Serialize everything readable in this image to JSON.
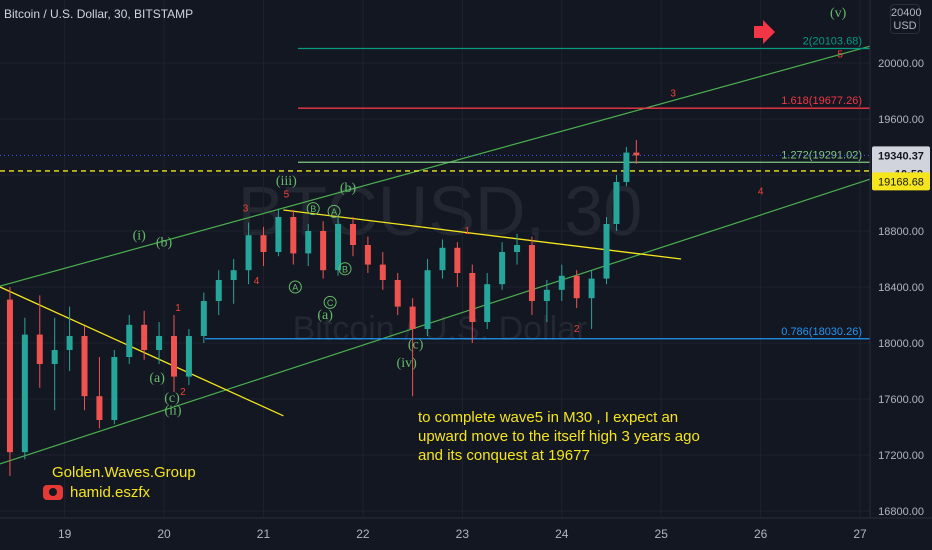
{
  "header": {
    "title": "Bitcoin / U.S. Dollar, 30, BITSTAMP"
  },
  "currency_badge": {
    "line1": "20400",
    "line2": "USD"
  },
  "watermark": {
    "symbol": "BTCUSD, 30",
    "name": "Bitcoin / U.S. Dollar"
  },
  "brand": {
    "group": "Golden.Waves.Group",
    "user": "hamid.eszfx"
  },
  "note": {
    "lines": [
      "to complete wave5 in M30 , I expect an",
      "upward move to the itself high 3 years ago",
      "and its conquest at  19677"
    ]
  },
  "colors": {
    "up": "#26a69a",
    "down": "#ef5350",
    "channel": "#4caf50",
    "trend": "#f5e51c",
    "fib_top": "#089981",
    "fib_1618": "#f23645",
    "fib_1272": "#81c784",
    "fib_0786": "#2196f3",
    "wave_green": "#66bb6a",
    "wave_red": "#f44336"
  },
  "chart_data": {
    "type": "candlestick",
    "title": "Bitcoin / U.S. Dollar, 30, BITSTAMP",
    "x_ticks": [
      "19",
      "20",
      "21",
      "22",
      "23",
      "24",
      "25",
      "26",
      "27"
    ],
    "y_ticks": [
      16800,
      17200,
      17600,
      18000,
      18400,
      18800,
      19200,
      19600,
      20000
    ],
    "y_tick_labels": [
      "16800.00",
      "17200.00",
      "17600.00",
      "18000.00",
      "18400.00",
      "18800.00",
      "19200.00",
      "19600.00",
      "20000.00"
    ],
    "ylim": [
      16750,
      20450
    ],
    "xlim": [
      18.35,
      27.1
    ],
    "current_price": {
      "value": 19340.37,
      "label": "19340.37",
      "countdown": "10:59"
    },
    "dashed_level": {
      "value": 19168.68,
      "label": "19168.68"
    },
    "fib_levels": [
      {
        "label": "2(20103.68)",
        "value": 20103.68,
        "color": "#089981"
      },
      {
        "label": "1.618(19677.26)",
        "value": 19677.26,
        "color": "#f23645"
      },
      {
        "label": "1.272(19291.02)",
        "value": 19291.02,
        "color": "#81c784"
      },
      {
        "label": "0.786(18030.26)",
        "value": 18030.26,
        "color": "#2196f3"
      }
    ],
    "channel_lines": [
      {
        "x1": 18.32,
        "y1": 18400,
        "x2": 27.1,
        "y2": 20120
      },
      {
        "x1": 18.32,
        "y1": 17130,
        "x2": 27.1,
        "y2": 19170
      }
    ],
    "trend_lines": [
      {
        "x1": 18.35,
        "y1": 18400,
        "x2": 21.2,
        "y2": 17480
      },
      {
        "x1": 21.2,
        "y1": 18950,
        "x2": 25.2,
        "y2": 18600
      }
    ],
    "wave_labels": [
      {
        "text": "(i)",
        "x": 19.75,
        "y": 18740,
        "color": "#66bb6a"
      },
      {
        "text": "(b)",
        "x": 20.0,
        "y": 18690,
        "color": "#66bb6a"
      },
      {
        "text": "(a)",
        "x": 19.93,
        "y": 17720,
        "color": "#66bb6a"
      },
      {
        "text": "(c)",
        "x": 20.08,
        "y": 17580,
        "color": "#66bb6a"
      },
      {
        "text": "(ii)",
        "x": 20.09,
        "y": 17490,
        "color": "#66bb6a"
      },
      {
        "text": "1",
        "x": 20.14,
        "y": 18230,
        "color": "#f44336"
      },
      {
        "text": "2",
        "x": 20.19,
        "y": 17630,
        "color": "#f44336"
      },
      {
        "text": "3",
        "x": 20.82,
        "y": 18940,
        "color": "#f44336"
      },
      {
        "text": "4",
        "x": 20.93,
        "y": 18420,
        "color": "#f44336"
      },
      {
        "text": "(iii)",
        "x": 21.23,
        "y": 19130,
        "color": "#66bb6a"
      },
      {
        "text": "5",
        "x": 21.23,
        "y": 19040,
        "color": "#f44336"
      },
      {
        "text": "(a)",
        "x": 21.62,
        "y": 18170,
        "color": "#66bb6a"
      },
      {
        "text": "(b)",
        "x": 21.85,
        "y": 19080,
        "color": "#66bb6a"
      },
      {
        "text": "(c)",
        "x": 22.53,
        "y": 17960,
        "color": "#66bb6a"
      },
      {
        "text": "(iv)",
        "x": 22.44,
        "y": 17830,
        "color": "#66bb6a"
      },
      {
        "text": "1",
        "x": 23.05,
        "y": 18780,
        "color": "#f44336"
      },
      {
        "text": "2",
        "x": 24.15,
        "y": 18080,
        "color": "#f44336"
      },
      {
        "text": "3",
        "x": 25.12,
        "y": 19760,
        "color": "#f44336"
      },
      {
        "text": "4",
        "x": 26.0,
        "y": 19060,
        "color": "#f44336"
      },
      {
        "text": "5",
        "x": 26.8,
        "y": 20040,
        "color": "#f44336"
      },
      {
        "text": "(v)",
        "x": 26.78,
        "y": 20330,
        "color": "#66bb6a"
      }
    ],
    "circle_labels": [
      {
        "text": "B",
        "x": 21.5,
        "y": 18960
      },
      {
        "text": "A",
        "x": 21.71,
        "y": 18940
      },
      {
        "text": "A",
        "x": 21.32,
        "y": 18400
      },
      {
        "text": "C",
        "x": 21.67,
        "y": 18290
      },
      {
        "text": "B",
        "x": 21.82,
        "y": 18530
      }
    ],
    "candles": [
      {
        "x": 18.45,
        "o": 18310,
        "h": 18400,
        "l": 17050,
        "c": 17220
      },
      {
        "x": 18.6,
        "o": 17220,
        "h": 18180,
        "l": 17170,
        "c": 18060
      },
      {
        "x": 18.75,
        "o": 18060,
        "h": 18340,
        "l": 17680,
        "c": 17850
      },
      {
        "x": 18.9,
        "o": 17850,
        "h": 18180,
        "l": 17520,
        "c": 17950
      },
      {
        "x": 19.05,
        "o": 17950,
        "h": 18260,
        "l": 17800,
        "c": 18050
      },
      {
        "x": 19.2,
        "o": 18050,
        "h": 18120,
        "l": 17520,
        "c": 17620
      },
      {
        "x": 19.35,
        "o": 17620,
        "h": 17900,
        "l": 17390,
        "c": 17450
      },
      {
        "x": 19.5,
        "o": 17450,
        "h": 17950,
        "l": 17420,
        "c": 17900
      },
      {
        "x": 19.65,
        "o": 17900,
        "h": 18200,
        "l": 17850,
        "c": 18130
      },
      {
        "x": 19.8,
        "o": 18130,
        "h": 18230,
        "l": 17880,
        "c": 17950
      },
      {
        "x": 19.95,
        "o": 17950,
        "h": 18150,
        "l": 17850,
        "c": 18050
      },
      {
        "x": 20.1,
        "o": 18050,
        "h": 18200,
        "l": 17650,
        "c": 17760
      },
      {
        "x": 20.25,
        "o": 17760,
        "h": 18100,
        "l": 17700,
        "c": 18050
      },
      {
        "x": 20.4,
        "o": 18050,
        "h": 18360,
        "l": 18000,
        "c": 18300
      },
      {
        "x": 20.55,
        "o": 18300,
        "h": 18520,
        "l": 18200,
        "c": 18450
      },
      {
        "x": 20.7,
        "o": 18450,
        "h": 18600,
        "l": 18280,
        "c": 18520
      },
      {
        "x": 20.85,
        "o": 18520,
        "h": 18860,
        "l": 18420,
        "c": 18770
      },
      {
        "x": 21.0,
        "o": 18770,
        "h": 18830,
        "l": 18550,
        "c": 18650
      },
      {
        "x": 21.15,
        "o": 18650,
        "h": 18960,
        "l": 18620,
        "c": 18900
      },
      {
        "x": 21.3,
        "o": 18900,
        "h": 18950,
        "l": 18560,
        "c": 18640
      },
      {
        "x": 21.45,
        "o": 18640,
        "h": 18850,
        "l": 18550,
        "c": 18800
      },
      {
        "x": 21.6,
        "o": 18800,
        "h": 18870,
        "l": 18460,
        "c": 18520
      },
      {
        "x": 21.75,
        "o": 18520,
        "h": 18900,
        "l": 18480,
        "c": 18850
      },
      {
        "x": 21.9,
        "o": 18850,
        "h": 18900,
        "l": 18620,
        "c": 18700
      },
      {
        "x": 22.05,
        "o": 18700,
        "h": 18760,
        "l": 18500,
        "c": 18560
      },
      {
        "x": 22.2,
        "o": 18560,
        "h": 18650,
        "l": 18380,
        "c": 18450
      },
      {
        "x": 22.35,
        "o": 18450,
        "h": 18500,
        "l": 18200,
        "c": 18260
      },
      {
        "x": 22.5,
        "o": 18260,
        "h": 18320,
        "l": 17620,
        "c": 18100
      },
      {
        "x": 22.65,
        "o": 18100,
        "h": 18600,
        "l": 18050,
        "c": 18520
      },
      {
        "x": 22.8,
        "o": 18520,
        "h": 18740,
        "l": 18460,
        "c": 18680
      },
      {
        "x": 22.95,
        "o": 18680,
        "h": 18720,
        "l": 18400,
        "c": 18500
      },
      {
        "x": 23.1,
        "o": 18500,
        "h": 18560,
        "l": 18000,
        "c": 18150
      },
      {
        "x": 23.25,
        "o": 18150,
        "h": 18500,
        "l": 18100,
        "c": 18420
      },
      {
        "x": 23.4,
        "o": 18420,
        "h": 18720,
        "l": 18380,
        "c": 18650
      },
      {
        "x": 23.55,
        "o": 18650,
        "h": 18780,
        "l": 18560,
        "c": 18700
      },
      {
        "x": 23.7,
        "o": 18700,
        "h": 18760,
        "l": 18200,
        "c": 18300
      },
      {
        "x": 23.85,
        "o": 18300,
        "h": 18450,
        "l": 18150,
        "c": 18380
      },
      {
        "x": 24.0,
        "o": 18380,
        "h": 18560,
        "l": 18300,
        "c": 18480
      },
      {
        "x": 24.15,
        "o": 18480,
        "h": 18520,
        "l": 18250,
        "c": 18320
      },
      {
        "x": 24.3,
        "o": 18320,
        "h": 18520,
        "l": 18100,
        "c": 18460
      },
      {
        "x": 24.45,
        "o": 18460,
        "h": 18900,
        "l": 18420,
        "c": 18850
      },
      {
        "x": 24.55,
        "o": 18850,
        "h": 19200,
        "l": 18800,
        "c": 19150
      },
      {
        "x": 24.65,
        "o": 19150,
        "h": 19400,
        "l": 19120,
        "c": 19360
      },
      {
        "x": 24.75,
        "o": 19360,
        "h": 19450,
        "l": 19280,
        "c": 19340
      }
    ]
  }
}
